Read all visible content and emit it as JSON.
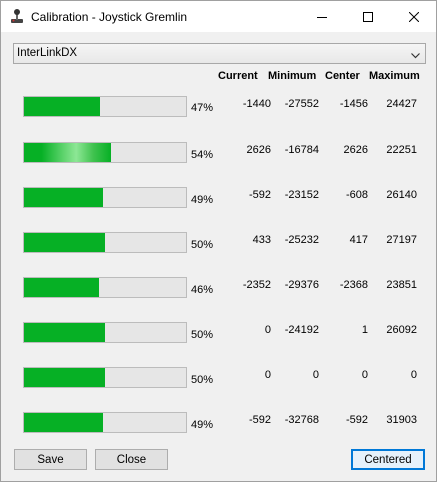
{
  "window": {
    "title": "Calibration - Joystick Gremlin",
    "icon": "joystick-icon",
    "controls": [
      "minimize-icon",
      "maximize-icon",
      "close-icon"
    ]
  },
  "device_select": {
    "value": "InterLinkDX"
  },
  "headers": {
    "current": "Current",
    "minimum": "Minimum",
    "center": "Center",
    "maximum": "Maximum"
  },
  "axes": [
    {
      "percent_label": "47%",
      "fill_fraction": 0.47,
      "current": "-1440",
      "minimum": "-27552",
      "center": "-1456",
      "maximum": "24427"
    },
    {
      "percent_label": "54%",
      "fill_fraction": 0.54,
      "current": "2626",
      "minimum": "-16784",
      "center": "2626",
      "maximum": "22251"
    },
    {
      "percent_label": "49%",
      "fill_fraction": 0.49,
      "current": "-592",
      "minimum": "-23152",
      "center": "-608",
      "maximum": "26140"
    },
    {
      "percent_label": "50%",
      "fill_fraction": 0.5,
      "current": "433",
      "minimum": "-25232",
      "center": "417",
      "maximum": "27197"
    },
    {
      "percent_label": "46%",
      "fill_fraction": 0.46,
      "current": "-2352",
      "minimum": "-29376",
      "center": "-2368",
      "maximum": "23851"
    },
    {
      "percent_label": "50%",
      "fill_fraction": 0.5,
      "current": "0",
      "minimum": "-24192",
      "center": "1",
      "maximum": "26092"
    },
    {
      "percent_label": "50%",
      "fill_fraction": 0.5,
      "current": "0",
      "minimum": "0",
      "center": "0",
      "maximum": "0"
    },
    {
      "percent_label": "49%",
      "fill_fraction": 0.49,
      "current": "-592",
      "minimum": "-32768",
      "center": "-592",
      "maximum": "31903"
    }
  ],
  "buttons": {
    "save": "Save",
    "close": "Close",
    "centered": "Centered"
  },
  "colors": {
    "bar_fill": "#06b025",
    "default_button_border": "#0078d7"
  }
}
